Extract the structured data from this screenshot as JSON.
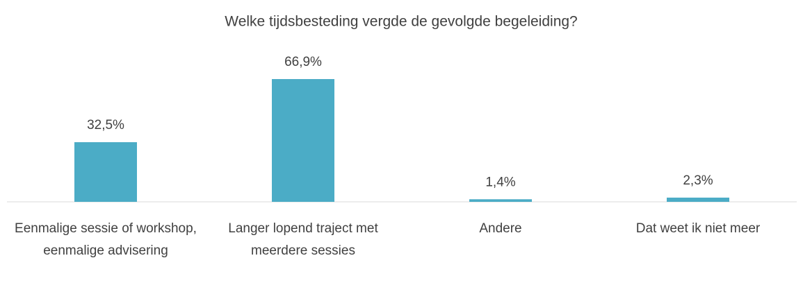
{
  "chart_data": {
    "type": "bar",
    "title": "Welke tijdsbesteding vergde de gevolgde begeleiding?",
    "categories": [
      "Eenmalige sessie of workshop, eenmalige advisering",
      "Langer lopend traject met meerdere sessies",
      "Andere",
      "Dat weet ik niet meer"
    ],
    "values": [
      32.5,
      66.9,
      1.4,
      2.3
    ],
    "value_labels": [
      "32,5%",
      "66,9%",
      "1,4%",
      "2,3%"
    ],
    "color": "#4bacc6"
  }
}
